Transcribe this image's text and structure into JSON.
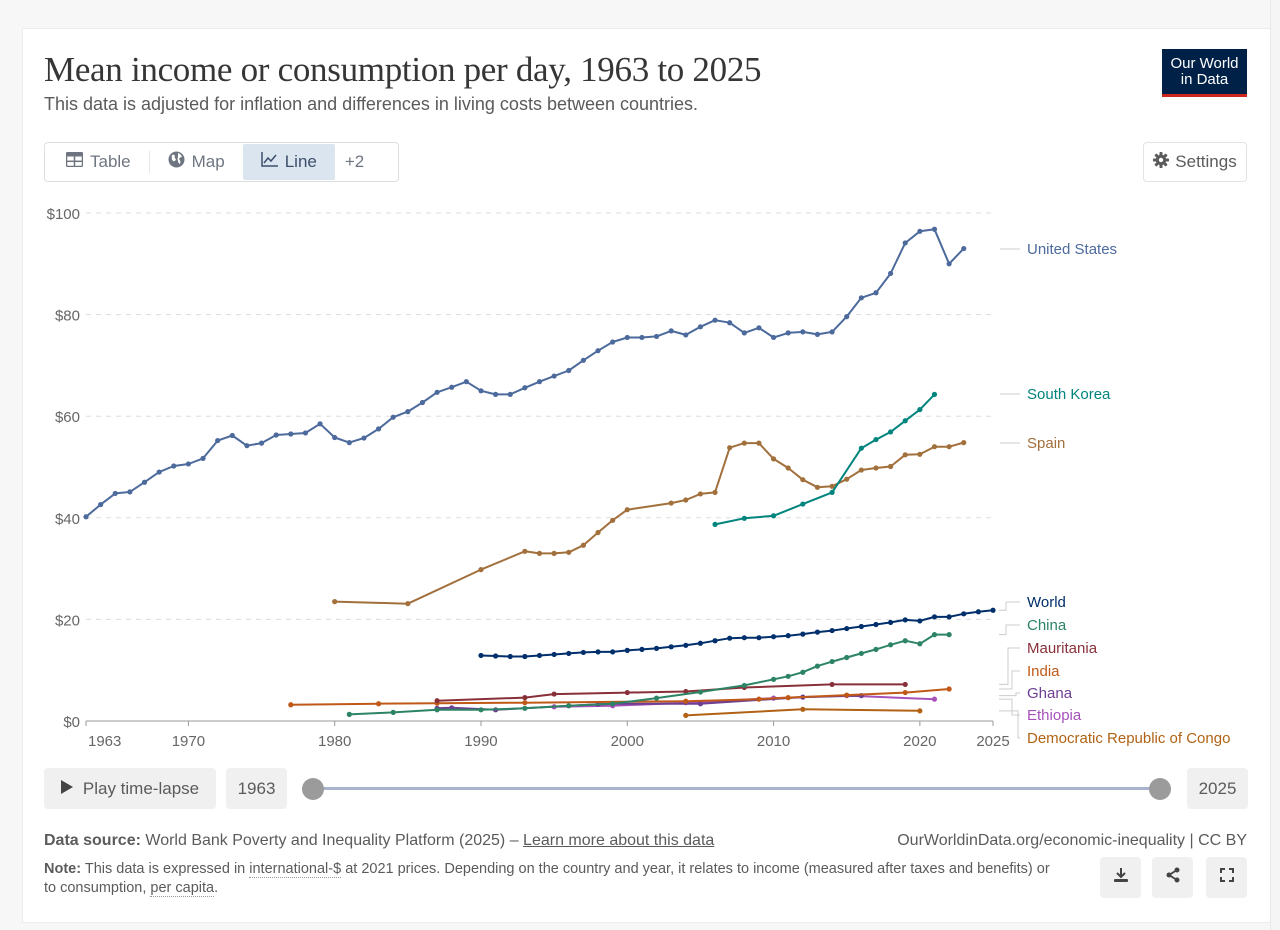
{
  "header": {
    "title": "Mean income or consumption per day, 1963 to 2025",
    "subtitle": "This data is adjusted for inflation and differences in living costs between countries.",
    "logo_line1": "Our World",
    "logo_line2": "in Data"
  },
  "tabs": [
    {
      "label": "Table",
      "icon": "table-icon",
      "active": false
    },
    {
      "label": "Map",
      "icon": "globe-icon",
      "active": false
    },
    {
      "label": "Line",
      "icon": "line-chart-icon",
      "active": true
    },
    {
      "label": "+2",
      "icon": "",
      "active": false
    }
  ],
  "settings_label": "Settings",
  "timeline": {
    "play_label": "Play time-lapse",
    "start_year": "1963",
    "end_year": "2025",
    "start_fraction": 0,
    "end_fraction": 1
  },
  "footer": {
    "source_label": "Data source:",
    "source_text": "World Bank Poverty and Inequality Platform (2025) – ",
    "source_link": "Learn more about this data",
    "note_label": "Note:",
    "note_part1": "This data is expressed in ",
    "note_link1": "international-$",
    "note_part2": " at 2021 prices. Depending on the country and year, it relates to income (measured after taxes and benefits) or to consumption, ",
    "note_link2": "per capita",
    "note_end": ".",
    "url": "OurWorldinData.org/economic-inequality | CC BY"
  },
  "actions": [
    "download-icon",
    "share-icon",
    "fullscreen-icon"
  ],
  "chart_data": {
    "type": "line",
    "title": "Mean income or consumption per day, 1963 to 2025",
    "xlabel": "",
    "ylabel": "",
    "xlim": [
      1963,
      2025
    ],
    "ylim": [
      0,
      100
    ],
    "x_ticks": [
      "1963",
      "1970",
      "1980",
      "1990",
      "2000",
      "2010",
      "2020",
      "2025"
    ],
    "x_tick_values": [
      1963,
      1970,
      1980,
      1990,
      2000,
      2010,
      2020,
      2025
    ],
    "y_ticks": [
      "$0",
      "$20",
      "$40",
      "$60",
      "$80",
      "$100"
    ],
    "y_tick_values": [
      0,
      20,
      40,
      60,
      80,
      100
    ],
    "grid": "horizontal dashed",
    "legend": "right (inline labels)",
    "series": [
      {
        "name": "United States",
        "color": "#4c6a9c",
        "x": [
          1963,
          1964,
          1965,
          1966,
          1967,
          1968,
          1969,
          1970,
          1971,
          1972,
          1973,
          1974,
          1975,
          1976,
          1977,
          1978,
          1979,
          1980,
          1981,
          1982,
          1983,
          1984,
          1985,
          1986,
          1987,
          1988,
          1989,
          1990,
          1991,
          1992,
          1993,
          1994,
          1995,
          1996,
          1997,
          1998,
          1999,
          2000,
          2001,
          2002,
          2003,
          2004,
          2005,
          2006,
          2007,
          2008,
          2009,
          2010,
          2011,
          2012,
          2013,
          2014,
          2015,
          2016,
          2017,
          2018,
          2019,
          2020,
          2021,
          2022,
          2023
        ],
        "y": [
          40.2,
          42.6,
          44.8,
          45.1,
          47.0,
          49.0,
          50.2,
          50.6,
          51.7,
          55.2,
          56.2,
          54.2,
          54.7,
          56.3,
          56.5,
          56.7,
          58.5,
          55.8,
          54.8,
          55.7,
          57.5,
          59.8,
          60.9,
          62.7,
          64.7,
          65.7,
          66.8,
          65.0,
          64.3,
          64.3,
          65.6,
          66.8,
          67.9,
          69.0,
          71.0,
          72.9,
          74.6,
          75.5,
          75.5,
          75.7,
          76.8,
          76.0,
          77.6,
          78.9,
          78.4,
          76.4,
          77.4,
          75.5,
          76.4,
          76.6,
          76.1,
          76.6,
          79.6,
          83.3,
          84.3,
          88.1,
          94.1,
          96.4,
          96.8,
          90.0,
          93.0
        ]
      },
      {
        "name": "South Korea",
        "color": "#00847e",
        "x": [
          2006,
          2008,
          2010,
          2012,
          2014,
          2016,
          2017,
          2018,
          2019,
          2020,
          2021
        ],
        "y": [
          38.7,
          39.9,
          40.4,
          42.7,
          45.0,
          53.7,
          55.4,
          56.9,
          59.1,
          61.3,
          64.3
        ]
      },
      {
        "name": "Spain",
        "color": "#a2703c",
        "x": [
          1980,
          1985,
          1990,
          1993,
          1994,
          1995,
          1996,
          1997,
          1998,
          1999,
          2000,
          2003,
          2004,
          2005,
          2006,
          2007,
          2008,
          2009,
          2010,
          2011,
          2012,
          2013,
          2014,
          2015,
          2016,
          2017,
          2018,
          2019,
          2020,
          2021,
          2022,
          2023
        ],
        "y": [
          23.5,
          23.1,
          29.8,
          33.4,
          33.0,
          33.0,
          33.2,
          34.6,
          37.1,
          39.5,
          41.6,
          42.9,
          43.5,
          44.7,
          45.0,
          53.8,
          54.7,
          54.7,
          51.6,
          49.8,
          47.5,
          46.0,
          46.2,
          47.6,
          49.4,
          49.8,
          50.1,
          52.4,
          52.5,
          54.0,
          54.0,
          54.8
        ]
      },
      {
        "name": "World",
        "color": "#002f6c",
        "x": [
          1990,
          1991,
          1992,
          1993,
          1994,
          1995,
          1996,
          1997,
          1998,
          1999,
          2000,
          2001,
          2002,
          2003,
          2004,
          2005,
          2006,
          2007,
          2008,
          2009,
          2010,
          2011,
          2012,
          2013,
          2014,
          2015,
          2016,
          2017,
          2018,
          2019,
          2020,
          2021,
          2022,
          2023,
          2024,
          2025
        ],
        "y": [
          12.9,
          12.8,
          12.7,
          12.7,
          12.9,
          13.1,
          13.3,
          13.5,
          13.6,
          13.6,
          13.9,
          14.1,
          14.3,
          14.6,
          14.9,
          15.3,
          15.8,
          16.3,
          16.4,
          16.4,
          16.6,
          16.8,
          17.1,
          17.5,
          17.8,
          18.2,
          18.6,
          19.0,
          19.4,
          19.9,
          19.7,
          20.5,
          20.5,
          21.1,
          21.5,
          21.8
        ]
      },
      {
        "name": "China",
        "color": "#2c8465",
        "x": [
          1981,
          1984,
          1987,
          1990,
          1993,
          1996,
          1999,
          2002,
          2005,
          2008,
          2010,
          2011,
          2012,
          2013,
          2014,
          2015,
          2016,
          2017,
          2018,
          2019,
          2020,
          2021,
          2022
        ],
        "y": [
          1.3,
          1.7,
          2.2,
          2.2,
          2.5,
          3.0,
          3.4,
          4.5,
          5.7,
          7.0,
          8.2,
          8.8,
          9.6,
          10.8,
          11.7,
          12.5,
          13.3,
          14.1,
          15.0,
          15.8,
          15.2,
          17.0,
          17.0
        ]
      },
      {
        "name": "Mauritania",
        "color": "#883039",
        "x": [
          1987,
          1993,
          1995,
          2000,
          2004,
          2008,
          2014,
          2019
        ],
        "y": [
          4.0,
          4.6,
          5.3,
          5.6,
          5.8,
          6.6,
          7.2,
          7.2
        ]
      },
      {
        "name": "India",
        "color": "#c05917",
        "x": [
          1977,
          1983,
          1987,
          1993,
          2004,
          2009,
          2011,
          2015,
          2019,
          2022
        ],
        "y": [
          3.2,
          3.4,
          3.5,
          3.6,
          3.9,
          4.3,
          4.6,
          5.1,
          5.6,
          6.3
        ]
      },
      {
        "name": "Ghana",
        "color": "#6d3e91",
        "x": [
          1987,
          1988,
          1991,
          1998,
          1999,
          2005,
          2012,
          2016
        ],
        "y": [
          2.5,
          2.6,
          2.2,
          3.3,
          3.4,
          3.4,
          4.7,
          5.0
        ]
      },
      {
        "name": "Ethiopia",
        "color": "#a652ba",
        "x": [
          1995,
          1999,
          2004,
          2010,
          2015,
          2021
        ],
        "y": [
          2.8,
          3.0,
          3.6,
          4.5,
          5.0,
          4.3
        ]
      },
      {
        "name": "Democratic Republic of Congo",
        "color": "#b16214",
        "x": [
          2004,
          2012,
          2020
        ],
        "y": [
          1.1,
          2.3,
          2.0
        ]
      }
    ],
    "labels": [
      {
        "name": "United States",
        "color": "#4c6a9c"
      },
      {
        "name": "South Korea",
        "color": "#00847e"
      },
      {
        "name": "Spain",
        "color": "#a2703c"
      },
      {
        "name": "World",
        "color": "#002f6c"
      },
      {
        "name": "China",
        "color": "#2c8465"
      },
      {
        "name": "Mauritania",
        "color": "#883039"
      },
      {
        "name": "India",
        "color": "#c05917"
      },
      {
        "name": "Ghana",
        "color": "#6d3e91"
      },
      {
        "name": "Ethiopia",
        "color": "#a652ba"
      },
      {
        "name": "Democratic Republic of Congo",
        "color": "#b16214"
      }
    ]
  }
}
